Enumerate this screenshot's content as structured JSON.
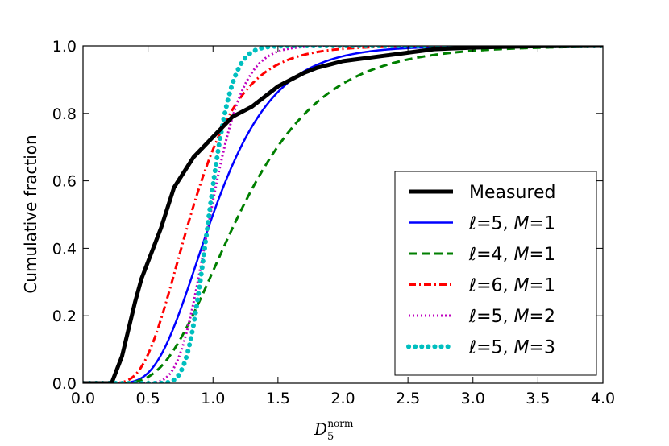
{
  "chart_data": {
    "type": "line",
    "title": "",
    "xlabel": "D",
    "xlabel_sub": "5",
    "xlabel_sup": "norm",
    "ylabel": "Cumulative fraction",
    "xlim": [
      0.0,
      4.0
    ],
    "ylim": [
      0.0,
      1.0
    ],
    "x_ticks": [
      0.0,
      0.5,
      1.0,
      1.5,
      2.0,
      2.5,
      3.0,
      3.5,
      4.0
    ],
    "x_tick_labels": [
      "0.0",
      "0.5",
      "1.0",
      "1.5",
      "2.0",
      "2.5",
      "3.0",
      "3.5",
      "4.0"
    ],
    "y_ticks": [
      0.0,
      0.2,
      0.4,
      0.6,
      0.8,
      1.0
    ],
    "y_tick_labels": [
      "0.0",
      "0.2",
      "0.4",
      "0.6",
      "0.8",
      "1.0"
    ],
    "grid": false,
    "legend_position": "lower-right",
    "series": [
      {
        "name": "Measured",
        "label_parts": {
          "text": "Measured"
        },
        "color": "#000000",
        "style": "solid-thick",
        "x": [
          0.0,
          0.22,
          0.25,
          0.3,
          0.35,
          0.4,
          0.45,
          0.5,
          0.55,
          0.6,
          0.65,
          0.7,
          0.75,
          0.8,
          0.85,
          0.9,
          0.95,
          1.0,
          1.05,
          1.1,
          1.15,
          1.2,
          1.3,
          1.4,
          1.5,
          1.6,
          1.7,
          1.8,
          1.9,
          2.0,
          2.1,
          2.2,
          2.3,
          2.4,
          2.5,
          2.6,
          2.7,
          2.8,
          3.0,
          3.2,
          3.5,
          4.0
        ],
        "y": [
          0.0,
          0.0,
          0.03,
          0.08,
          0.16,
          0.24,
          0.31,
          0.36,
          0.41,
          0.46,
          0.52,
          0.58,
          0.61,
          0.64,
          0.67,
          0.69,
          0.71,
          0.73,
          0.75,
          0.77,
          0.79,
          0.8,
          0.82,
          0.85,
          0.88,
          0.9,
          0.92,
          0.935,
          0.945,
          0.955,
          0.96,
          0.965,
          0.97,
          0.975,
          0.98,
          0.985,
          0.99,
          0.992,
          0.995,
          0.997,
          0.999,
          1.0
        ]
      },
      {
        "name": "ℓ=5, M=1",
        "label_parts": {
          "ell": "5",
          "m": "1"
        },
        "color": "#0000ff",
        "style": "solid",
        "dist": {
          "mu": 0.0,
          "sigma": 0.37,
          "median": 1.0
        }
      },
      {
        "name": "ℓ=4, M=1",
        "label_parts": {
          "ell": "4",
          "m": "1"
        },
        "color": "#007f00",
        "style": "dashed",
        "dist": {
          "median": 1.2,
          "sigma": 0.42
        }
      },
      {
        "name": "ℓ=6, M=1",
        "label_parts": {
          "ell": "6",
          "m": "1"
        },
        "color": "#ff0000",
        "style": "dashdot",
        "dist": {
          "median": 0.83,
          "sigma": 0.37
        }
      },
      {
        "name": "ℓ=5, M=2",
        "label_parts": {
          "ell": "5",
          "m": "2"
        },
        "color": "#bf00bf",
        "style": "dotted",
        "dist": {
          "median": 0.98,
          "sigma": 0.2
        }
      },
      {
        "name": "ℓ=5, M=3",
        "label_parts": {
          "ell": "5",
          "m": "3"
        },
        "color": "#00bfbf",
        "style": "dots",
        "dist": {
          "median": 0.97,
          "sigma": 0.14
        }
      }
    ]
  }
}
